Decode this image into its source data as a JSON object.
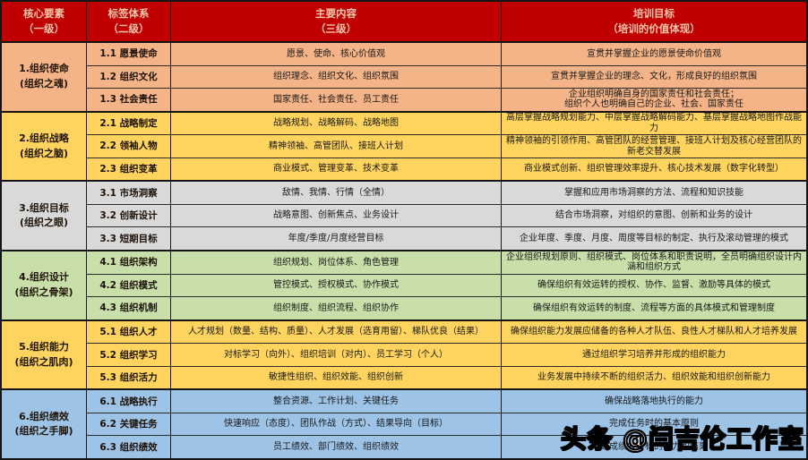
{
  "header": {
    "bg": "#C00000",
    "text_color": "#F5C7AC",
    "cols": [
      {
        "label": "核心要素\n（一级）"
      },
      {
        "label": "标签体系\n（二级）"
      },
      {
        "label": "主要内容\n（三级）"
      },
      {
        "label": "培训目标\n（培训的价值体现）"
      }
    ]
  },
  "groups": [
    {
      "name": "1.组织使命",
      "alias": "(组织之魂)",
      "color": "#F4B487",
      "rows": [
        {
          "label": "1.1 愿景使命",
          "content": "愿景、使命、核心价值观",
          "goal": "宣贯并掌握企业的愿景使命价值观"
        },
        {
          "label": "1.2 组织文化",
          "content": "组织理念、组织文化、组织氛围",
          "goal": "宣贯并掌握企业的理念、文化，形成良好的组织氛围"
        },
        {
          "label": "1.3 社会责任",
          "content": "国家责任、社会责任、员工责任",
          "goal": "企业组织明确自身的国家责任和社会责任；\n组织个人也明确自己的企业、社会、国家责任"
        }
      ]
    },
    {
      "name": "2.组织战略",
      "alias": "(组织之脑)",
      "color": "#FFD45E",
      "rows": [
        {
          "label": "2.1 战略制定",
          "content": "战略规划、战略解码、战略地图",
          "goal": "高层掌握战略规划能力、中层掌握战略解码能力、基层掌握战略地图作战能力"
        },
        {
          "label": "2.2 领袖人物",
          "content": "精神领袖、高管团队、接班人计划",
          "goal": "精神领袖的引领作用、高管团队的经营管理、接班人计划及核心经营团队的新老交替发展"
        },
        {
          "label": "2.3 组织变革",
          "content": "商业模式、管理变革、技术变革",
          "goal": "商业模式创新、组织管理效率提升、核心技术发展（数字化转型）"
        }
      ]
    },
    {
      "name": "3.组织目标",
      "alias": "(组织之眼)",
      "color": "#D9D9D9",
      "rows": [
        {
          "label": "3.1 市场洞察",
          "content": "敌情、我情、行情（全情）",
          "goal": "掌握和应用市场洞察的方法、流程和知识技能"
        },
        {
          "label": "3.2 创新设计",
          "content": "战略意图、创新焦点、业务设计",
          "goal": "结合市场洞察，对组织的意图、创新和业务的设计"
        },
        {
          "label": "3.3 短期目标",
          "content": "年度/季度/月度经营目标",
          "goal": "企业年度、季度、月度、周度等目标的制定、执行及滚动管理的模式"
        }
      ]
    },
    {
      "name": "4.组织设计",
      "alias": "(组织之骨架)",
      "color": "#C8DFA9",
      "rows": [
        {
          "label": "4.1 组织架构",
          "content": "组织规划、岗位体系、角色管理",
          "goal": "企业组织规划原则、组织模式、岗位体系和职责说明，全员明确组织设计内涵和组织方式"
        },
        {
          "label": "4.2 组织模式",
          "content": "管控模式、授权模式、协作模式",
          "goal": "确保组织有效运转的授权、协作、监督、激励等具体的模式"
        },
        {
          "label": "4.3 组织机制",
          "content": "组织制度、组织流程、组织协作",
          "goal": "确保组织有效运转的制度、流程等方面的具体模式和管理制度"
        }
      ]
    },
    {
      "name": "5.组织能力",
      "alias": "(组织之肌肉)",
      "color": "#FFD45E",
      "rows": [
        {
          "label": "5.1 组织人才",
          "content": "人才规划（数量、结构、质量）、人才发展（选育用留）、梯队优良（结果）",
          "goal": "确保组织能力发展应储备的各种人才队伍、良性人才梯队和人才培养发展"
        },
        {
          "label": "5.2 组织学习",
          "content": "对标学习（向外）、组织培训（对内）、员工学习（个人）",
          "goal": "通过组织学习培养并形成的组织能力"
        },
        {
          "label": "5.3 组织活力",
          "content": "敏捷性组织、组织效能、组织创新",
          "goal": "业务发展中持续不断的组织活力、组织效能和组织创新能力"
        }
      ]
    },
    {
      "name": "6.组织绩效",
      "alias": "(组织之手脚)",
      "color": "#9DC3E6",
      "rows": [
        {
          "label": "6.1 战略执行",
          "content": "整合资源、工作计划、关键任务",
          "goal": "确保战略落地执行的能力"
        },
        {
          "label": "6.2 关键任务",
          "content": "快速响应（态度）、团队作战（方式）、结果导向（目标）",
          "goal": "完成任务时的基本原则"
        },
        {
          "label": "6.3 组织绩效",
          "content": "员工绩效、部门绩效、组织绩效",
          "goal": "达成绩效目标的能力和结果"
        }
      ]
    }
  ],
  "watermark": {
    "text": "头条 @闫吉伦工作室"
  }
}
